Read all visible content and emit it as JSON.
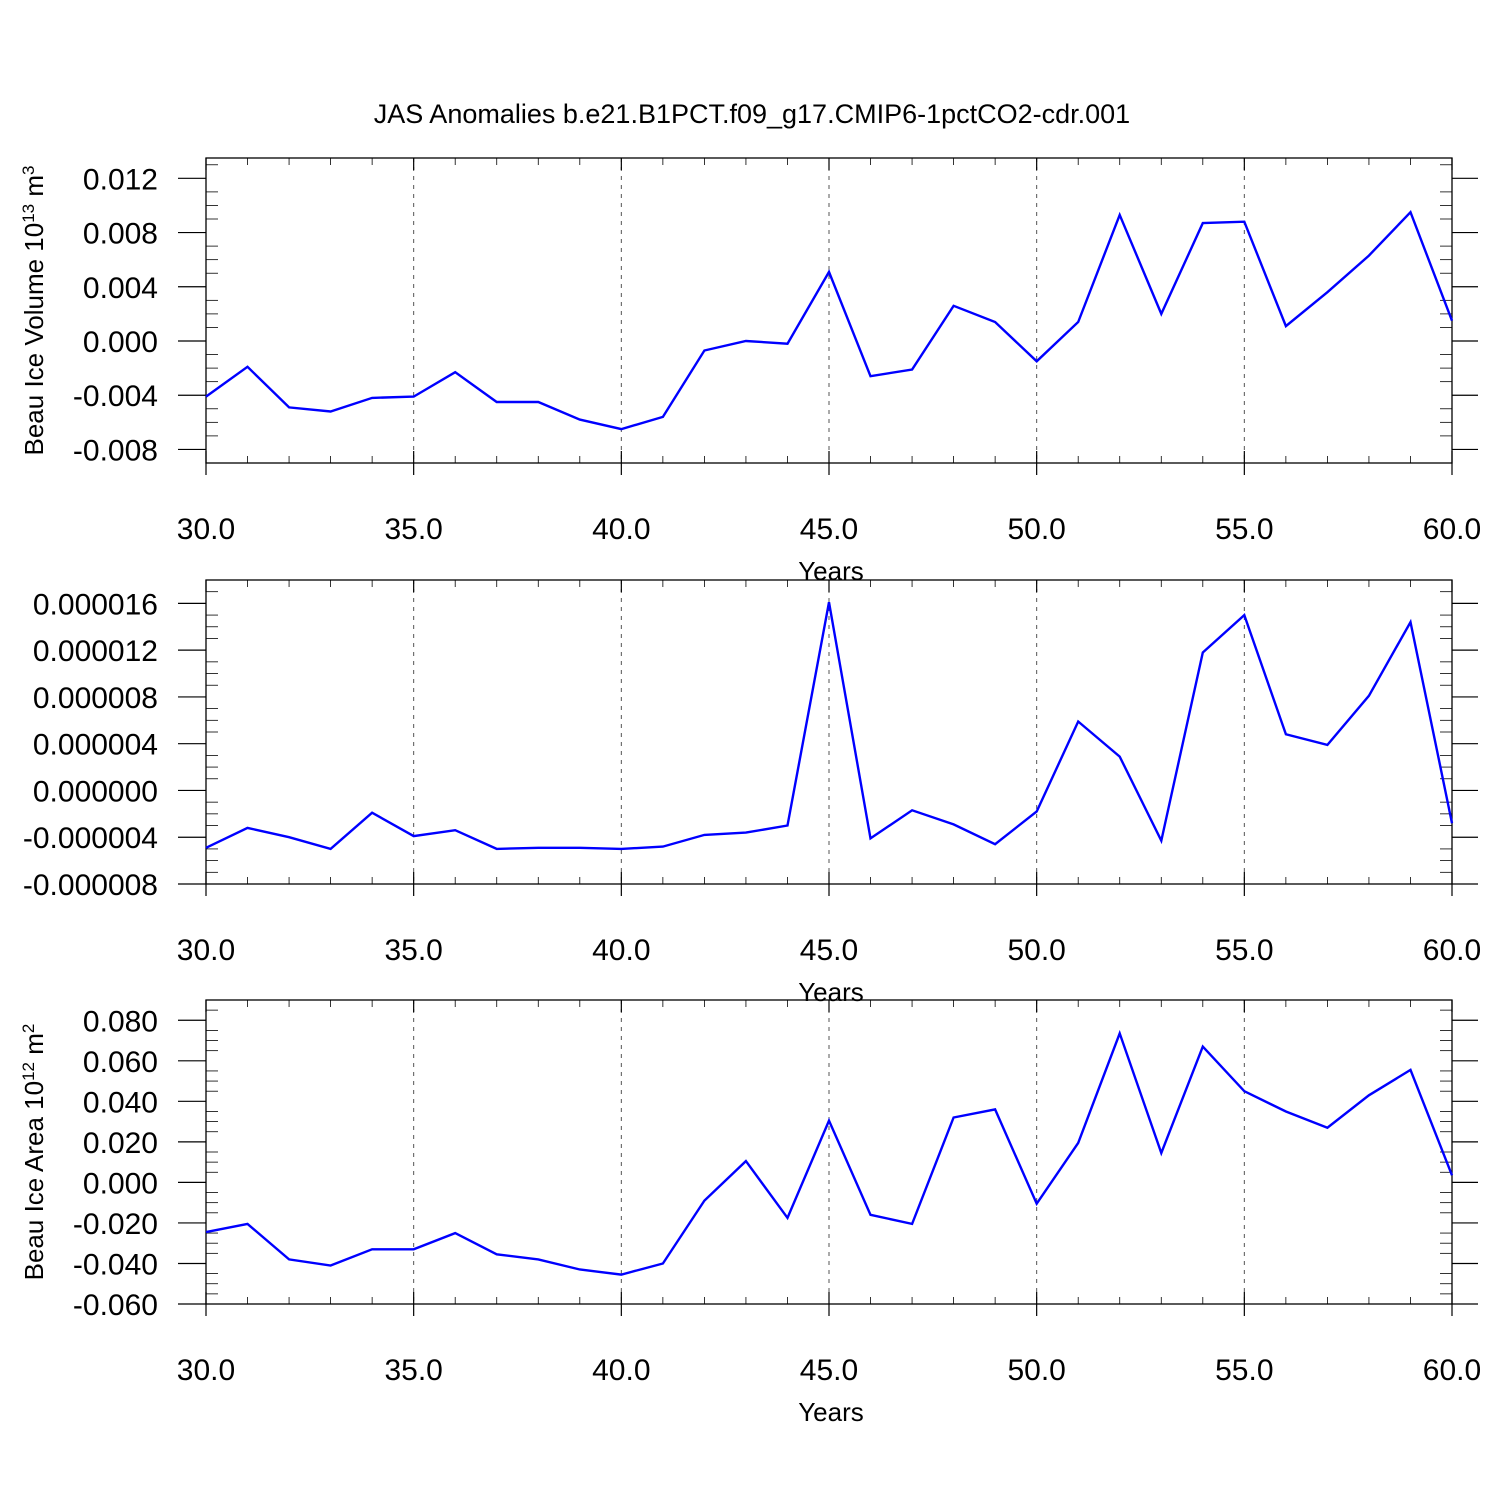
{
  "title": "JAS Anomalies b.e21.B1PCT.f09_g17.CMIP6-1pctCO2-cdr.001",
  "colors": {
    "series": "#0000ff",
    "axis": "#000000",
    "grid": "#555555"
  },
  "chart_data": [
    {
      "type": "line",
      "xlabel": "Years",
      "ylabel": {
        "text": "Beau Ice Volume 10",
        "exp": "13",
        "unit": " m",
        "unit_exp": "3"
      },
      "xlim": [
        30,
        60
      ],
      "ylim": [
        -0.009,
        0.0135
      ],
      "xticks": [
        "30.0",
        "35.0",
        "40.0",
        "45.0",
        "50.0",
        "55.0",
        "60.0"
      ],
      "yticks": [
        "-0.008",
        "-0.004",
        "0.000",
        "0.004",
        "0.008",
        "0.012"
      ],
      "grid": "dashed vertical lines at 35, 40, 45, 50, 55",
      "x": [
        30,
        31,
        32,
        33,
        34,
        35,
        36,
        37,
        38,
        39,
        40,
        41,
        42,
        43,
        44,
        45,
        46,
        47,
        48,
        49,
        50,
        51,
        52,
        53,
        54,
        55,
        56,
        57,
        58,
        59,
        60
      ],
      "values": [
        -0.0041,
        -0.0019,
        -0.0049,
        -0.0052,
        -0.0042,
        -0.0041,
        -0.0023,
        -0.0045,
        -0.0045,
        -0.0058,
        -0.0065,
        -0.0056,
        -0.0007,
        0.0,
        -0.0002,
        0.0051,
        -0.0026,
        -0.0021,
        0.0026,
        0.0014,
        -0.0015,
        0.0014,
        0.0093,
        0.002,
        0.0087,
        0.0088,
        0.0011,
        0.0036,
        0.0063,
        0.0095,
        0.0015
      ]
    },
    {
      "type": "line",
      "xlabel": "Years",
      "ylabel": null,
      "xlim": [
        30,
        60
      ],
      "ylim": [
        -8e-06,
        1.8e-05
      ],
      "xticks": [
        "30.0",
        "35.0",
        "40.0",
        "45.0",
        "50.0",
        "55.0",
        "60.0"
      ],
      "yticks": [
        "-0.000008",
        "-0.000004",
        "0.000000",
        "0.000004",
        "0.000008",
        "0.000012",
        "0.000016"
      ],
      "grid": "dashed vertical lines at 35, 40, 45, 50, 55",
      "x": [
        30,
        31,
        32,
        33,
        34,
        35,
        36,
        37,
        38,
        39,
        40,
        41,
        42,
        43,
        44,
        45,
        46,
        47,
        48,
        49,
        50,
        51,
        52,
        53,
        54,
        55,
        56,
        57,
        58,
        59,
        60
      ],
      "values": [
        -4.9e-06,
        -3.2e-06,
        -4e-06,
        -5e-06,
        -1.9e-06,
        -3.9e-06,
        -3.4e-06,
        -5e-06,
        -4.9e-06,
        -4.9e-06,
        -5e-06,
        -4.8e-06,
        -3.8e-06,
        -3.6e-06,
        -3e-06,
        1.61e-05,
        -4.1e-06,
        -1.7e-06,
        -2.9e-06,
        -4.6e-06,
        -1.8e-06,
        5.9e-06,
        2.9e-06,
        -4.3e-06,
        1.18e-05,
        1.5e-05,
        4.8e-06,
        3.9e-06,
        8.1e-06,
        1.44e-05,
        -2.8e-06
      ]
    },
    {
      "type": "line",
      "xlabel": "Years",
      "ylabel": {
        "text": "Beau Ice Area 10",
        "exp": "12",
        "unit": " m",
        "unit_exp": "2"
      },
      "xlim": [
        30,
        60
      ],
      "ylim": [
        -0.06,
        0.09
      ],
      "xticks": [
        "30.0",
        "35.0",
        "40.0",
        "45.0",
        "50.0",
        "55.0",
        "60.0"
      ],
      "yticks": [
        "-0.060",
        "-0.040",
        "-0.020",
        "0.000",
        "0.020",
        "0.040",
        "0.060",
        "0.080"
      ],
      "grid": "dashed vertical lines at 35, 40, 45, 50, 55",
      "x": [
        30,
        31,
        32,
        33,
        34,
        35,
        36,
        37,
        38,
        39,
        40,
        41,
        42,
        43,
        44,
        45,
        46,
        47,
        48,
        49,
        50,
        51,
        52,
        53,
        54,
        55,
        56,
        57,
        58,
        59,
        60
      ],
      "values": [
        -0.0245,
        -0.0205,
        -0.038,
        -0.041,
        -0.033,
        -0.033,
        -0.025,
        -0.0355,
        -0.038,
        -0.043,
        -0.0455,
        -0.04,
        -0.009,
        0.0105,
        -0.0175,
        0.0305,
        -0.016,
        -0.0205,
        0.032,
        0.036,
        -0.0105,
        0.0195,
        0.0735,
        0.0145,
        0.067,
        0.045,
        0.035,
        0.027,
        0.043,
        0.0555,
        0.0035
      ]
    }
  ]
}
